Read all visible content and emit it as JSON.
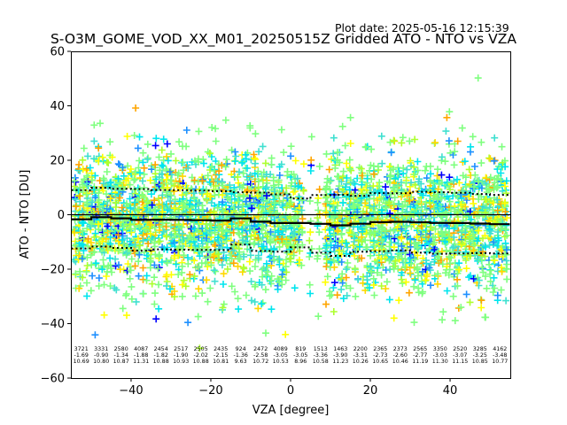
{
  "chart_data": {
    "type": "scatter",
    "title": "S-O3M_GOME_VOD_XX_M01_20250515Z Gridded ATO - NTO vs VZA",
    "plot_date": "Plot date: 2025-05-16 12:15:39",
    "xlabel": "VZA [degree]",
    "ylabel": "ATO - NTO [DU]",
    "xlim": [
      -55.1,
      55.1
    ],
    "ylim": [
      -60,
      60
    ],
    "x_ticks": [
      -40,
      -20,
      0,
      20,
      40
    ],
    "x_tick_labels": [
      "−40",
      "−20",
      "0",
      "20",
      "40"
    ],
    "y_ticks": [
      60,
      40,
      20,
      0,
      -20,
      -40,
      -60
    ],
    "y_tick_labels": [
      "60",
      "40",
      "20",
      "0",
      "−20",
      "−40",
      "−60"
    ],
    "grid": false,
    "marker": "+",
    "colors": [
      "#0000ff",
      "#1e90ff",
      "#00e5ee",
      "#40e0d0",
      "#7fff7f",
      "#adff2f",
      "#ffff00",
      "#ffd700",
      "#ffa500"
    ],
    "bin_edges": [
      -55,
      -50,
      -45,
      -40,
      -35,
      -30,
      -25,
      -20,
      -15,
      -10,
      -5,
      0,
      5,
      10,
      15,
      20,
      25,
      30,
      35,
      40,
      45,
      50,
      55
    ],
    "bins": {
      "count": [
        "3721",
        "3331",
        "2580",
        "4087",
        "2454",
        "2517",
        "2505",
        "2435",
        "924",
        "2472",
        "4089",
        "819",
        "1513",
        "1463",
        "2200",
        "2365",
        "2373",
        "2565",
        "3350",
        "2520",
        "3285",
        "4162"
      ],
      "mean": [
        "-1.69",
        "-0.90",
        "-1.34",
        "-1.88",
        "-1.82",
        "-1.90",
        "-2.02",
        "-2.15",
        "-1.36",
        "-2.58",
        "-3.05",
        "-3.05",
        "-3.36",
        "-3.90",
        "-3.31",
        "-2.73",
        "-2.60",
        "-2.77",
        "-3.03",
        "-3.07",
        "-3.25",
        "-3.48"
      ],
      "std": [
        "10.69",
        "10.80",
        "10.87",
        "11.31",
        "10.88",
        "10.93",
        "10.88",
        "10.81",
        "9.63",
        "10.72",
        "10.53",
        "8.96",
        "10.58",
        "11.23",
        "10.26",
        "10.65",
        "10.46",
        "11.19",
        "11.30",
        "11.15",
        "10.85",
        "10.77"
      ]
    },
    "series": [
      {
        "name": "gridded ATO - NTO",
        "style": "colored + markers"
      },
      {
        "name": "bin mean",
        "style": "solid black step"
      },
      {
        "name": "mean ± std",
        "style": "dotted black step"
      }
    ]
  }
}
